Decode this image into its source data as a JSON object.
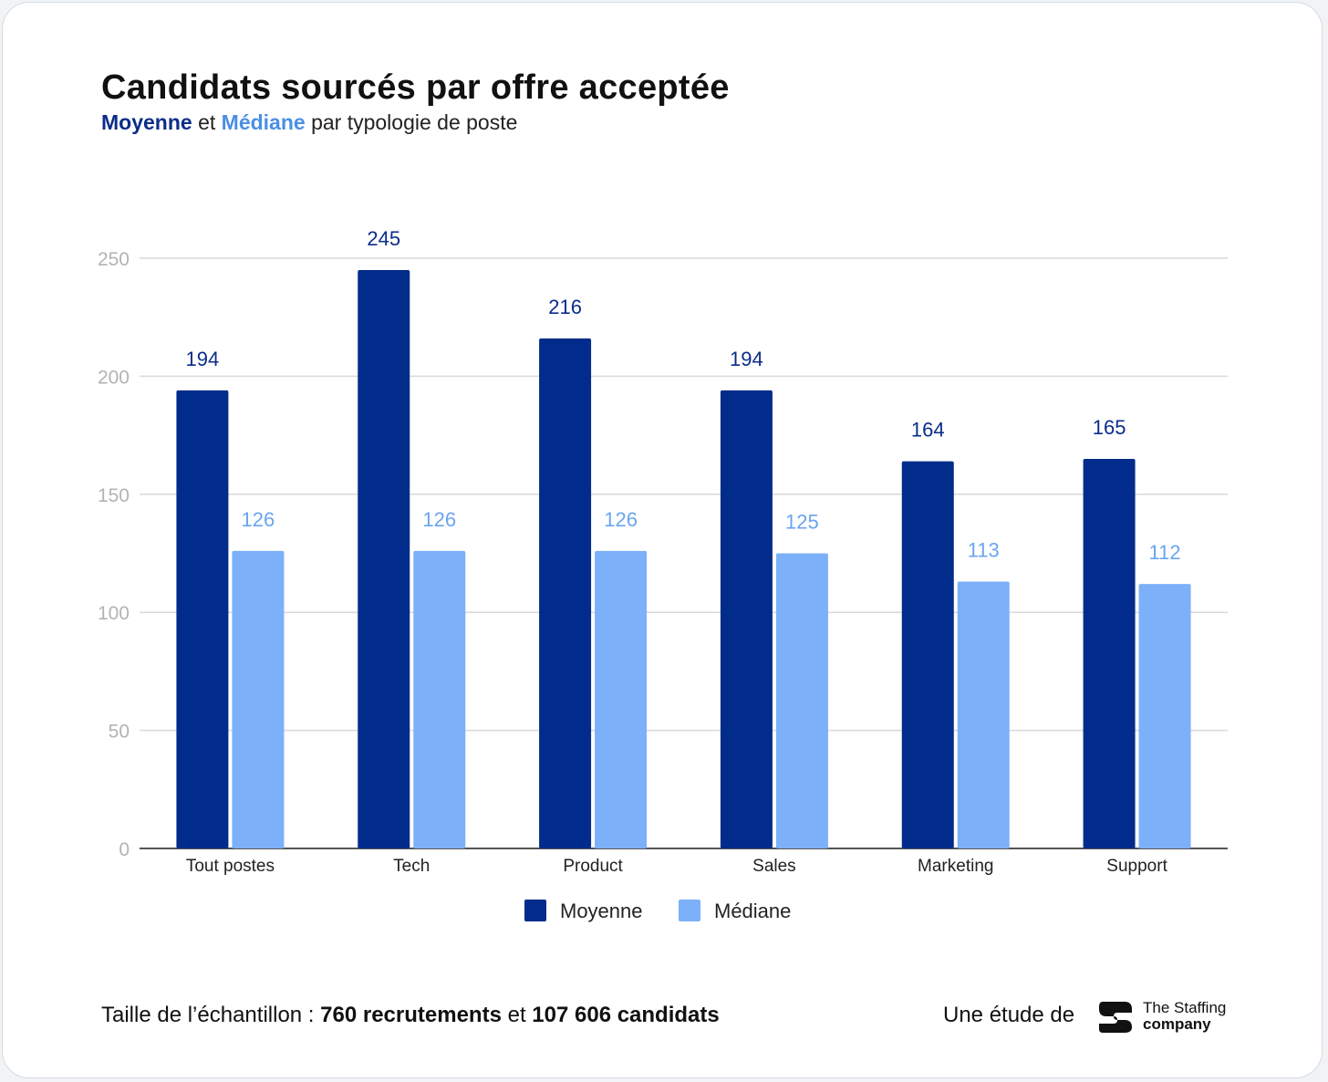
{
  "header": {
    "title": "Candidats sourcés par offre acceptée",
    "subtitle_moyenne": "Moyenne",
    "subtitle_et": " et ",
    "subtitle_mediane": "Médiane",
    "subtitle_rest": " par typologie de poste"
  },
  "chart_data": {
    "type": "bar",
    "categories": [
      "Tout postes",
      "Tech",
      "Product",
      "Sales",
      "Marketing",
      "Support"
    ],
    "series": [
      {
        "name": "Moyenne",
        "color": "#022c8b",
        "label_color": "#0b2d8a",
        "values": [
          194,
          245,
          216,
          194,
          164,
          165
        ]
      },
      {
        "name": "Médiane",
        "color": "#7cb0f8",
        "label_color": "#6aa5ef",
        "values": [
          126,
          126,
          126,
          125,
          113,
          112
        ]
      }
    ],
    "ylim": [
      0,
      250
    ],
    "yticks": [
      0,
      50,
      100,
      150,
      200,
      250
    ],
    "grid": true,
    "legend": "bottom-center"
  },
  "footer": {
    "sample_prefix": "Taille de l’échantillon : ",
    "sample_recruitments": "760 recrutements",
    "sample_and": " et ",
    "sample_candidates": "107 606 candidats",
    "study_by": "Une étude de",
    "brand_line1": "The Staffing",
    "brand_line2": "company",
    "logo_icon": "staffing-company-logo-icon"
  }
}
